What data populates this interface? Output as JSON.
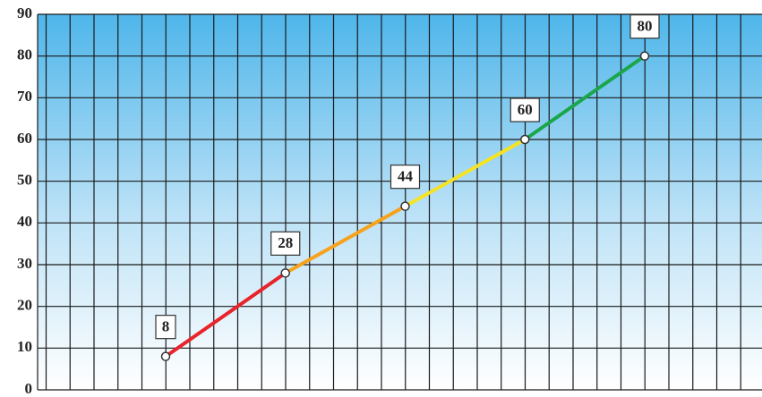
{
  "chart_data": {
    "type": "line",
    "categories": [
      null,
      null,
      null,
      null,
      null
    ],
    "values": [
      8,
      28,
      44,
      60,
      80
    ],
    "segment_colors": [
      "#e8232a",
      "#f7a21b",
      "#f5e324",
      "#1aa64a"
    ],
    "ylim": [
      0,
      90
    ],
    "yticks": [
      0,
      10,
      20,
      30,
      40,
      50,
      60,
      70,
      80,
      90
    ],
    "grid": true
  }
}
